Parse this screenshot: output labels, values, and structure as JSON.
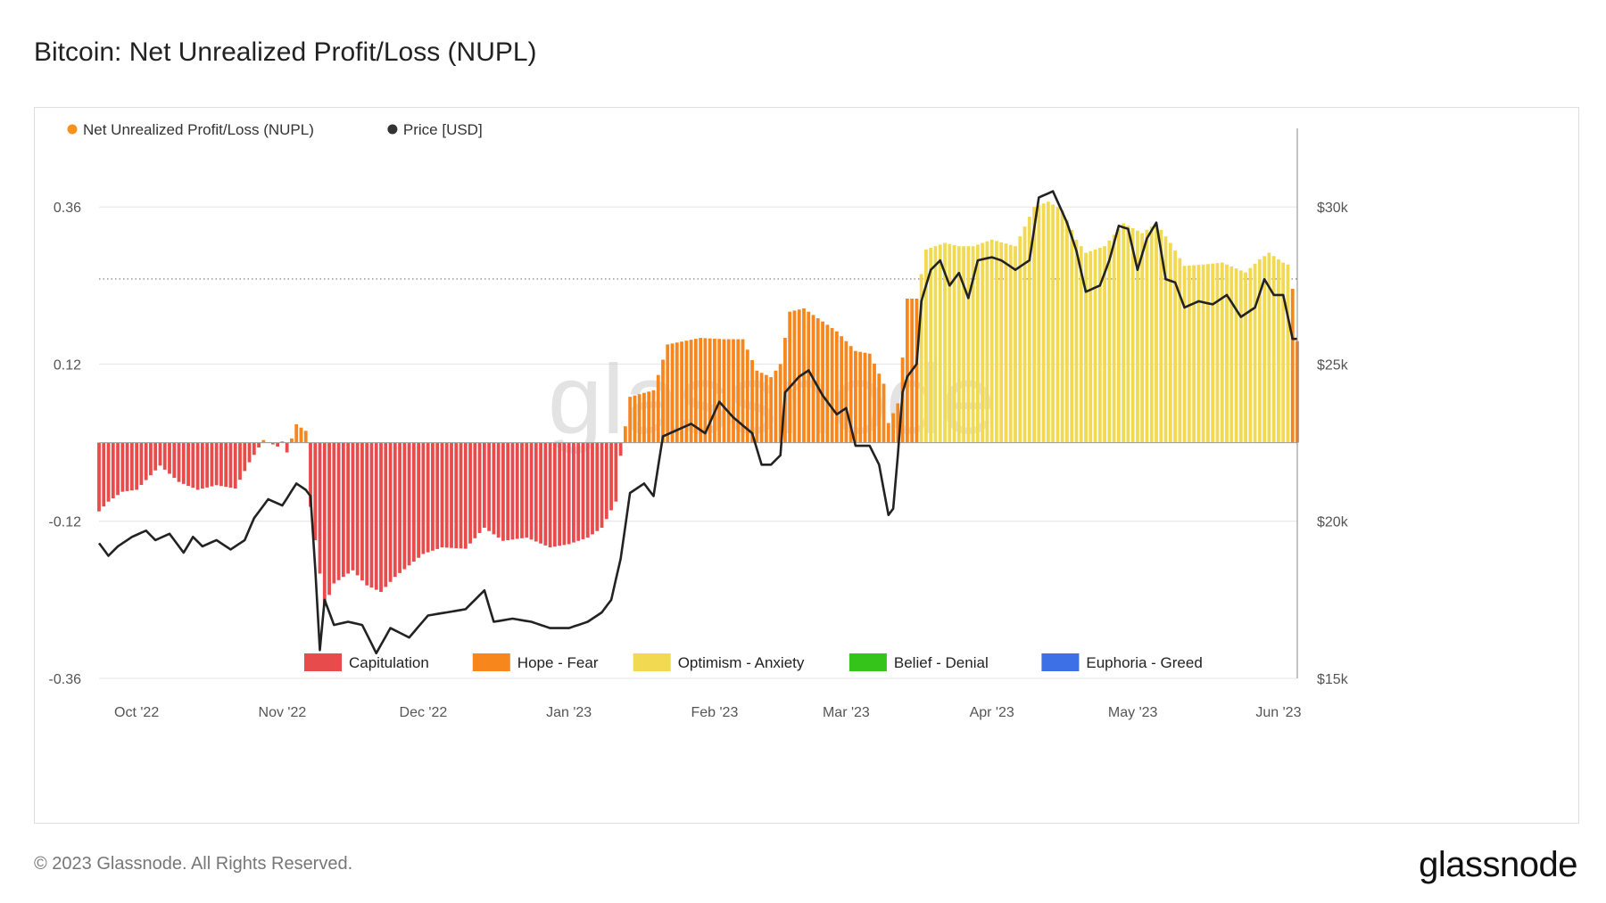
{
  "page": {
    "title": "Bitcoin: Net Unrealized Profit/Loss (NUPL)",
    "footer": "© 2023 Glassnode. All Rights Reserved.",
    "brand": "glassnode",
    "watermark": "glassnode"
  },
  "chart_data": {
    "type": "bar",
    "legend_top": [
      {
        "name": "Net Unrealized Profit/Loss (NUPL)",
        "color": "#f7931a"
      },
      {
        "name": "Price [USD]",
        "color": "#333333"
      }
    ],
    "zones": [
      {
        "name": "Capitulation",
        "color": "#e84b4b",
        "max": 0
      },
      {
        "name": "Hope - Fear",
        "color": "#f7861c",
        "max": 0.25
      },
      {
        "name": "Optimism - Anxiety",
        "color": "#f1d952",
        "max": 0.5
      },
      {
        "name": "Belief - Denial",
        "color": "#34c41a",
        "max": 0.75
      },
      {
        "name": "Euphoria - Greed",
        "color": "#3d6fe6",
        "max": 1
      }
    ],
    "x_range": [
      "2022-09-23",
      "2023-06-05"
    ],
    "x_ticks": [
      {
        "label": "Oct '22",
        "date": "2022-10-01"
      },
      {
        "label": "Nov '22",
        "date": "2022-11-01"
      },
      {
        "label": "Dec '22",
        "date": "2022-12-01"
      },
      {
        "label": "Jan '23",
        "date": "2023-01-01"
      },
      {
        "label": "Feb '23",
        "date": "2023-02-01"
      },
      {
        "label": "Mar '23",
        "date": "2023-03-01"
      },
      {
        "label": "Apr '23",
        "date": "2023-04-01"
      },
      {
        "label": "May '23",
        "date": "2023-05-01"
      },
      {
        "label": "Jun '23",
        "date": "2023-06-01"
      }
    ],
    "y_left": {
      "ylim": [
        -0.36,
        0.48
      ],
      "ticks": [
        "0.36",
        "0.12",
        "-0.12",
        "-0.36"
      ],
      "tick_values": [
        0.36,
        0.12,
        -0.12,
        -0.36
      ]
    },
    "y_right": {
      "ylim": [
        15000,
        32500
      ],
      "ticks": [
        "$30k",
        "$25k",
        "$20k",
        "$15k"
      ],
      "tick_values": [
        30000,
        25000,
        20000,
        15000
      ]
    },
    "reference_line": {
      "value": 0.25,
      "style": "dotted"
    },
    "nupl_keyframes": [
      [
        "2022-09-23",
        -0.105
      ],
      [
        "2022-09-25",
        -0.09
      ],
      [
        "2022-09-28",
        -0.075
      ],
      [
        "2022-10-01",
        -0.072
      ],
      [
        "2022-10-06",
        -0.035
      ],
      [
        "2022-10-10",
        -0.06
      ],
      [
        "2022-10-14",
        -0.072
      ],
      [
        "2022-10-18",
        -0.065
      ],
      [
        "2022-10-22",
        -0.07
      ],
      [
        "2022-10-25",
        -0.03
      ],
      [
        "2022-10-28",
        0.004
      ],
      [
        "2022-10-31",
        -0.006
      ],
      [
        "2022-11-01",
        0.002
      ],
      [
        "2022-11-02",
        -0.015
      ],
      [
        "2022-11-04",
        0.028
      ],
      [
        "2022-11-06",
        0.018
      ],
      [
        "2022-11-07",
        -0.098
      ],
      [
        "2022-11-09",
        -0.2
      ],
      [
        "2022-11-10",
        -0.25
      ],
      [
        "2022-11-12",
        -0.215
      ],
      [
        "2022-11-16",
        -0.195
      ],
      [
        "2022-11-19",
        -0.218
      ],
      [
        "2022-11-22",
        -0.228
      ],
      [
        "2022-11-25",
        -0.205
      ],
      [
        "2022-12-01",
        -0.17
      ],
      [
        "2022-12-05",
        -0.16
      ],
      [
        "2022-12-10",
        -0.162
      ],
      [
        "2022-12-14",
        -0.13
      ],
      [
        "2022-12-18",
        -0.15
      ],
      [
        "2022-12-23",
        -0.145
      ],
      [
        "2022-12-28",
        -0.16
      ],
      [
        "2023-01-01",
        -0.155
      ],
      [
        "2023-01-05",
        -0.145
      ],
      [
        "2023-01-08",
        -0.13
      ],
      [
        "2023-01-11",
        -0.09
      ],
      [
        "2023-01-12",
        -0.02
      ],
      [
        "2023-01-14",
        0.07
      ],
      [
        "2023-01-19",
        0.08
      ],
      [
        "2023-01-22",
        0.15
      ],
      [
        "2023-01-29",
        0.16
      ],
      [
        "2023-02-03",
        0.158
      ],
      [
        "2023-02-07",
        0.158
      ],
      [
        "2023-02-10",
        0.11
      ],
      [
        "2023-02-13",
        0.1
      ],
      [
        "2023-02-15",
        0.12
      ],
      [
        "2023-02-17",
        0.2
      ],
      [
        "2023-02-20",
        0.205
      ],
      [
        "2023-02-23",
        0.19
      ],
      [
        "2023-02-27",
        0.17
      ],
      [
        "2023-03-03",
        0.14
      ],
      [
        "2023-03-06",
        0.136
      ],
      [
        "2023-03-09",
        0.09
      ],
      [
        "2023-03-10",
        0.03
      ],
      [
        "2023-03-12",
        0.06
      ],
      [
        "2023-03-13",
        0.13
      ],
      [
        "2023-03-14",
        0.22
      ],
      [
        "2023-03-16",
        0.22
      ],
      [
        "2023-03-18",
        0.295
      ],
      [
        "2023-03-22",
        0.305
      ],
      [
        "2023-03-25",
        0.3
      ],
      [
        "2023-03-28",
        0.3
      ],
      [
        "2023-04-01",
        0.31
      ],
      [
        "2023-04-06",
        0.3
      ],
      [
        "2023-04-10",
        0.36
      ],
      [
        "2023-04-13",
        0.368
      ],
      [
        "2023-04-16",
        0.355
      ],
      [
        "2023-04-19",
        0.31
      ],
      [
        "2023-04-21",
        0.29
      ],
      [
        "2023-04-25",
        0.3
      ],
      [
        "2023-04-29",
        0.335
      ],
      [
        "2023-05-03",
        0.32
      ],
      [
        "2023-05-06",
        0.335
      ],
      [
        "2023-05-09",
        0.305
      ],
      [
        "2023-05-12",
        0.27
      ],
      [
        "2023-05-16",
        0.272
      ],
      [
        "2023-05-20",
        0.275
      ],
      [
        "2023-05-25",
        0.26
      ],
      [
        "2023-05-28",
        0.28
      ],
      [
        "2023-05-30",
        0.29
      ],
      [
        "2023-06-02",
        0.275
      ],
      [
        "2023-06-03",
        0.272
      ],
      [
        "2023-06-04",
        0.235
      ],
      [
        "2023-06-05",
        0.155
      ]
    ],
    "price_keyframes": [
      [
        "2022-09-23",
        19300
      ],
      [
        "2022-09-25",
        18900
      ],
      [
        "2022-09-27",
        19200
      ],
      [
        "2022-09-30",
        19500
      ],
      [
        "2022-10-03",
        19700
      ],
      [
        "2022-10-05",
        19400
      ],
      [
        "2022-10-08",
        19600
      ],
      [
        "2022-10-11",
        19000
      ],
      [
        "2022-10-13",
        19500
      ],
      [
        "2022-10-15",
        19200
      ],
      [
        "2022-10-18",
        19400
      ],
      [
        "2022-10-21",
        19100
      ],
      [
        "2022-10-24",
        19400
      ],
      [
        "2022-10-26",
        20100
      ],
      [
        "2022-10-29",
        20700
      ],
      [
        "2022-11-01",
        20500
      ],
      [
        "2022-11-04",
        21200
      ],
      [
        "2022-11-06",
        21000
      ],
      [
        "2022-11-07",
        20800
      ],
      [
        "2022-11-08",
        18500
      ],
      [
        "2022-11-09",
        15900
      ],
      [
        "2022-11-10",
        17500
      ],
      [
        "2022-11-12",
        16700
      ],
      [
        "2022-11-15",
        16800
      ],
      [
        "2022-11-18",
        16700
      ],
      [
        "2022-11-21",
        15800
      ],
      [
        "2022-11-24",
        16600
      ],
      [
        "2022-11-28",
        16300
      ],
      [
        "2022-12-02",
        17000
      ],
      [
        "2022-12-06",
        17100
      ],
      [
        "2022-12-10",
        17200
      ],
      [
        "2022-12-14",
        17800
      ],
      [
        "2022-12-16",
        16800
      ],
      [
        "2022-12-20",
        16900
      ],
      [
        "2022-12-24",
        16800
      ],
      [
        "2022-12-28",
        16600
      ],
      [
        "2023-01-01",
        16600
      ],
      [
        "2023-01-05",
        16800
      ],
      [
        "2023-01-08",
        17100
      ],
      [
        "2023-01-10",
        17500
      ],
      [
        "2023-01-12",
        18800
      ],
      [
        "2023-01-14",
        20900
      ],
      [
        "2023-01-17",
        21200
      ],
      [
        "2023-01-19",
        20800
      ],
      [
        "2023-01-21",
        22700
      ],
      [
        "2023-01-24",
        22900
      ],
      [
        "2023-01-27",
        23100
      ],
      [
        "2023-01-30",
        22800
      ],
      [
        "2023-02-02",
        23800
      ],
      [
        "2023-02-05",
        23300
      ],
      [
        "2023-02-09",
        22800
      ],
      [
        "2023-02-11",
        21800
      ],
      [
        "2023-02-13",
        21800
      ],
      [
        "2023-02-15",
        22100
      ],
      [
        "2023-02-16",
        24100
      ],
      [
        "2023-02-19",
        24600
      ],
      [
        "2023-02-21",
        24800
      ],
      [
        "2023-02-24",
        24000
      ],
      [
        "2023-02-27",
        23400
      ],
      [
        "2023-03-01",
        23600
      ],
      [
        "2023-03-03",
        22400
      ],
      [
        "2023-03-06",
        22400
      ],
      [
        "2023-03-08",
        21800
      ],
      [
        "2023-03-10",
        20200
      ],
      [
        "2023-03-11",
        20400
      ],
      [
        "2023-03-12",
        22100
      ],
      [
        "2023-03-13",
        24100
      ],
      [
        "2023-03-14",
        24600
      ],
      [
        "2023-03-16",
        25000
      ],
      [
        "2023-03-17",
        27000
      ],
      [
        "2023-03-19",
        28000
      ],
      [
        "2023-03-21",
        28300
      ],
      [
        "2023-03-23",
        27500
      ],
      [
        "2023-03-25",
        27900
      ],
      [
        "2023-03-27",
        27100
      ],
      [
        "2023-03-29",
        28300
      ],
      [
        "2023-04-01",
        28400
      ],
      [
        "2023-04-03",
        28300
      ],
      [
        "2023-04-06",
        28000
      ],
      [
        "2023-04-09",
        28300
      ],
      [
        "2023-04-11",
        30300
      ],
      [
        "2023-04-14",
        30500
      ],
      [
        "2023-04-17",
        29500
      ],
      [
        "2023-04-19",
        28600
      ],
      [
        "2023-04-21",
        27300
      ],
      [
        "2023-04-24",
        27500
      ],
      [
        "2023-04-26",
        28300
      ],
      [
        "2023-04-28",
        29400
      ],
      [
        "2023-04-30",
        29300
      ],
      [
        "2023-05-02",
        28000
      ],
      [
        "2023-05-04",
        29000
      ],
      [
        "2023-05-06",
        29500
      ],
      [
        "2023-05-08",
        27700
      ],
      [
        "2023-05-10",
        27600
      ],
      [
        "2023-05-12",
        26800
      ],
      [
        "2023-05-15",
        27000
      ],
      [
        "2023-05-18",
        26900
      ],
      [
        "2023-05-21",
        27200
      ],
      [
        "2023-05-24",
        26500
      ],
      [
        "2023-05-27",
        26800
      ],
      [
        "2023-05-29",
        27700
      ],
      [
        "2023-05-31",
        27200
      ],
      [
        "2023-06-02",
        27200
      ],
      [
        "2023-06-04",
        25800
      ],
      [
        "2023-06-05",
        25800
      ]
    ]
  }
}
